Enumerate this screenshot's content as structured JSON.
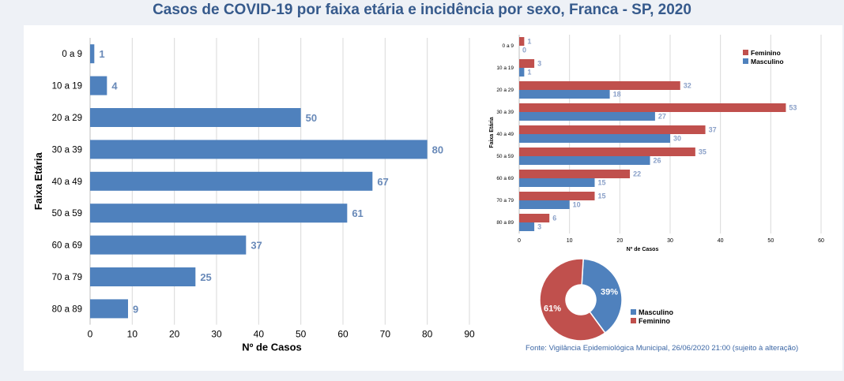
{
  "title": "Casos de COVID-19 por faixa etária e incidência por sexo, Franca - SP, 2020",
  "source": "Fonte: Vigilância Epidemiológica Municipal, 26/06/2020 21:00 (sujeito à alteração)",
  "colors": {
    "blue": "#4f81bd",
    "red": "#c0504d",
    "label_blue": "#6889b8",
    "label_red": "#8aa0c8"
  },
  "chart_data": [
    {
      "type": "bar",
      "orientation": "horizontal",
      "categories": [
        "0 a 9",
        "10 a 19",
        "20 a 29",
        "30 a 39",
        "40 a 49",
        "50 a 59",
        "60  a 69",
        "70 a 79",
        "80 a 89"
      ],
      "values": [
        1,
        4,
        50,
        80,
        67,
        61,
        37,
        25,
        9
      ],
      "xlabel": "Nº de Casos",
      "ylabel": "Faixa Etária",
      "xlim": [
        0,
        90
      ],
      "xticks": [
        0,
        10,
        20,
        30,
        40,
        50,
        60,
        70,
        80,
        90
      ],
      "grid": true
    },
    {
      "type": "bar",
      "orientation": "horizontal",
      "categories": [
        "0 a 9",
        "10 a 19",
        "20 a 29",
        "30 a 39",
        "40 a 49",
        "50 a 59",
        "60 a 69",
        "70 a 79",
        "80 a 89"
      ],
      "series": [
        {
          "name": "Feminino",
          "values": [
            1,
            3,
            32,
            53,
            37,
            35,
            22,
            15,
            6
          ]
        },
        {
          "name": "Masculino",
          "values": [
            0,
            1,
            18,
            27,
            30,
            26,
            15,
            10,
            3
          ]
        }
      ],
      "xlabel": "Nº de Casos",
      "ylabel": "Faixa Etária",
      "xlim": [
        0,
        60
      ],
      "xticks": [
        0,
        10,
        20,
        30,
        40,
        50,
        60
      ],
      "grid": true,
      "legend": "top-right"
    },
    {
      "type": "pie",
      "style": "donut",
      "slices": [
        {
          "name": "Masculino",
          "value": 39,
          "label": "39%"
        },
        {
          "name": "Feminino",
          "value": 61,
          "label": "61%"
        }
      ],
      "legend": "right"
    }
  ]
}
